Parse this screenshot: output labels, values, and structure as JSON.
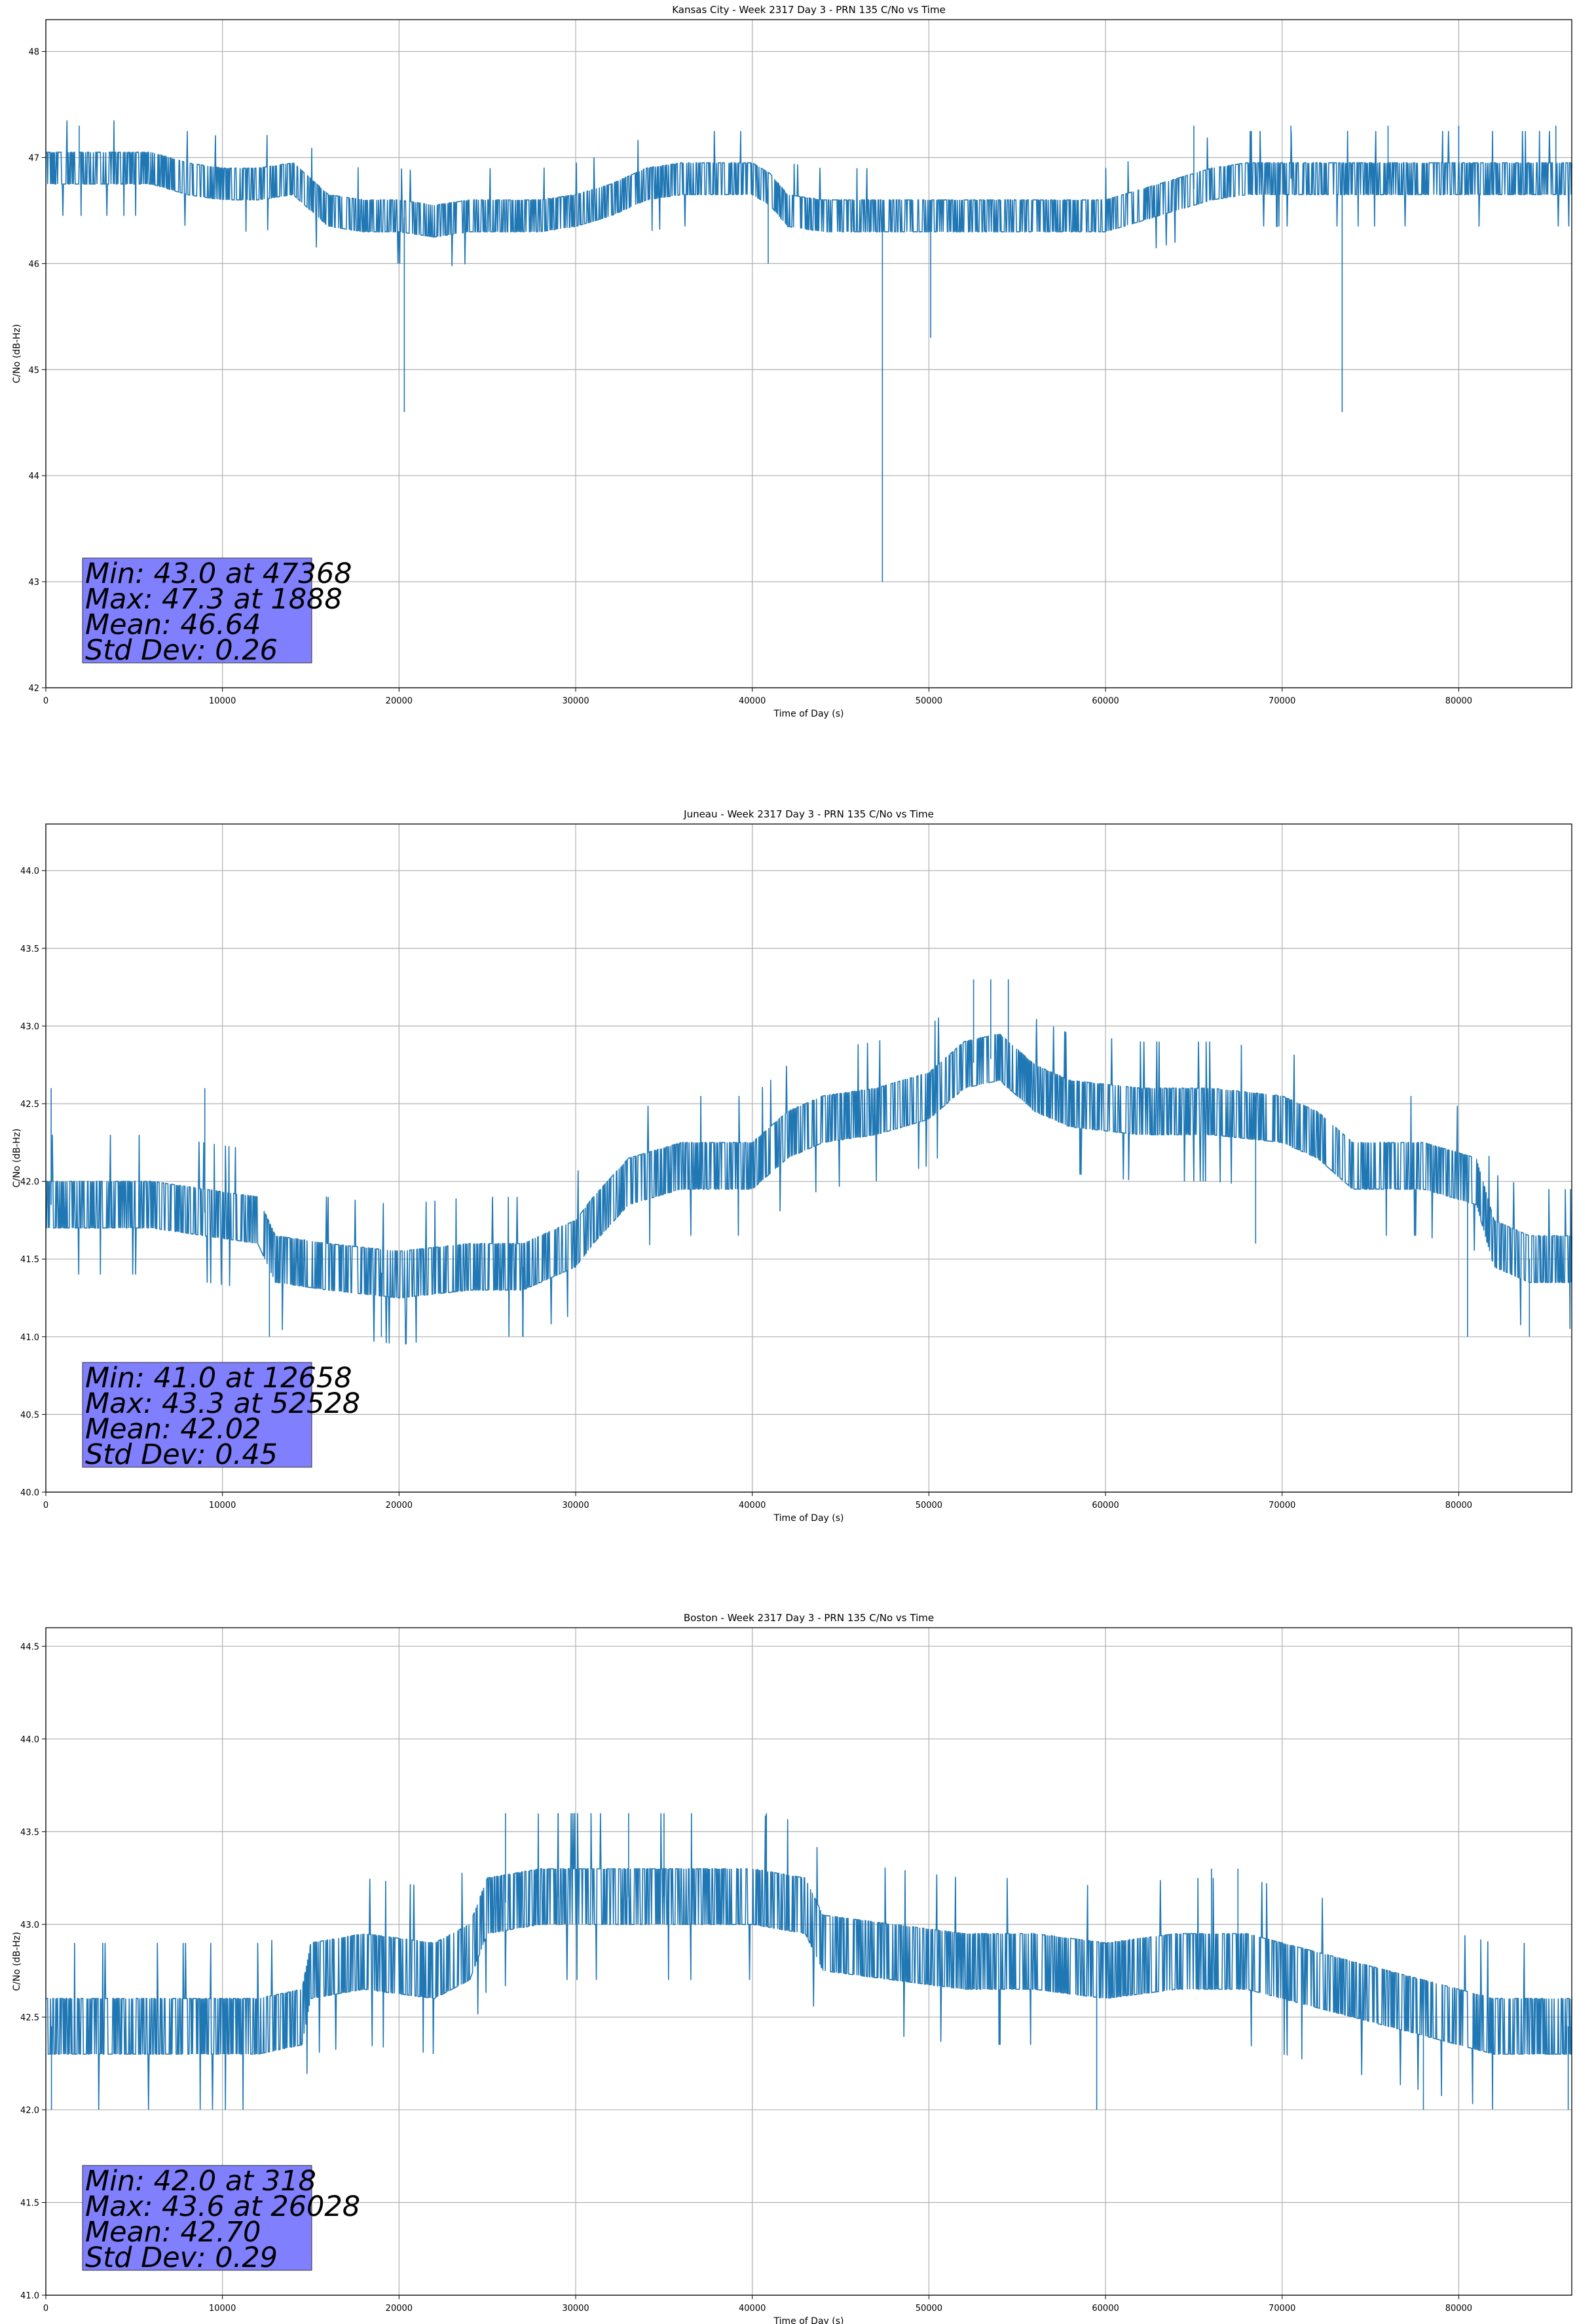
{
  "chart_data": [
    {
      "type": "line",
      "title": "Kansas City - Week 2317 Day 3 - PRN 135 C/No vs Time",
      "xlabel": "Time of Day (s)",
      "ylabel": "C/No (dB-Hz)",
      "xlim": [
        0,
        86400
      ],
      "ylim": [
        42,
        48.3
      ],
      "xticks": [
        0,
        10000,
        20000,
        30000,
        40000,
        50000,
        60000,
        70000,
        80000
      ],
      "yticks": [
        42,
        43,
        44,
        45,
        46,
        47,
        48
      ],
      "ytick_labels": [
        "42",
        "43",
        "44",
        "45",
        "46",
        "47",
        "48"
      ],
      "grid": true,
      "series_color": "#1f77b4",
      "series_profile": [
        [
          0,
          46.9
        ],
        [
          2000,
          46.9
        ],
        [
          4000,
          46.9
        ],
        [
          6000,
          46.9
        ],
        [
          8000,
          46.8
        ],
        [
          10000,
          46.75
        ],
        [
          12000,
          46.75
        ],
        [
          14000,
          46.8
        ],
        [
          16000,
          46.5
        ],
        [
          18000,
          46.45
        ],
        [
          20000,
          46.45
        ],
        [
          22000,
          46.4
        ],
        [
          24000,
          46.45
        ],
        [
          26000,
          46.45
        ],
        [
          28000,
          46.45
        ],
        [
          30000,
          46.5
        ],
        [
          32000,
          46.6
        ],
        [
          34000,
          46.75
        ],
        [
          36000,
          46.8
        ],
        [
          38000,
          46.8
        ],
        [
          40000,
          46.8
        ],
        [
          41000,
          46.7
        ],
        [
          42000,
          46.5
        ],
        [
          44000,
          46.45
        ],
        [
          46000,
          46.45
        ],
        [
          48000,
          46.45
        ],
        [
          50000,
          46.45
        ],
        [
          52000,
          46.45
        ],
        [
          54000,
          46.45
        ],
        [
          56000,
          46.45
        ],
        [
          58000,
          46.45
        ],
        [
          60000,
          46.45
        ],
        [
          62000,
          46.55
        ],
        [
          64000,
          46.65
        ],
        [
          66000,
          46.75
        ],
        [
          68000,
          46.8
        ],
        [
          70000,
          46.8
        ],
        [
          72000,
          46.8
        ],
        [
          74000,
          46.8
        ],
        [
          76000,
          46.8
        ],
        [
          78000,
          46.8
        ],
        [
          80000,
          46.8
        ],
        [
          82000,
          46.8
        ],
        [
          84000,
          46.8
        ],
        [
          86400,
          46.8
        ]
      ],
      "series_noise": 0.22,
      "series_step": 0.3,
      "series_spikes": [
        [
          1888,
          47.3
        ],
        [
          20300,
          44.6
        ],
        [
          47368,
          43.0
        ],
        [
          50100,
          45.3
        ],
        [
          73400,
          44.6
        ],
        [
          40900,
          46.0
        ],
        [
          65000,
          47.3
        ],
        [
          70500,
          47.3
        ],
        [
          76000,
          47.3
        ],
        [
          80000,
          47.3
        ],
        [
          85500,
          47.3
        ]
      ],
      "stats": [
        "Min: 43.0 at 47368",
        "Max: 47.3 at 1888",
        "Mean: 46.64",
        "Std Dev: 0.26"
      ],
      "stats_location": "bottom-left"
    },
    {
      "type": "line",
      "title": "Juneau - Week 2317 Day 3 - PRN 135 C/No vs Time",
      "xlabel": "Time of Day (s)",
      "ylabel": "C/No (dB-Hz)",
      "xlim": [
        0,
        86400
      ],
      "ylim": [
        40,
        44.3
      ],
      "xticks": [
        0,
        10000,
        20000,
        30000,
        40000,
        50000,
        60000,
        70000,
        80000
      ],
      "yticks": [
        40.0,
        40.5,
        41.0,
        41.5,
        42.0,
        42.5,
        43.0,
        43.5,
        44.0
      ],
      "ytick_labels": [
        "40.0",
        "40.5",
        "41.0",
        "41.5",
        "42.0",
        "42.5",
        "43.0",
        "43.5",
        "44.0"
      ],
      "grid": true,
      "series_color": "#1f77b4",
      "series_profile": [
        [
          0,
          41.85
        ],
        [
          3000,
          41.85
        ],
        [
          6000,
          41.85
        ],
        [
          9000,
          41.8
        ],
        [
          12000,
          41.75
        ],
        [
          13000,
          41.5
        ],
        [
          16000,
          41.45
        ],
        [
          20000,
          41.4
        ],
        [
          24000,
          41.45
        ],
        [
          27000,
          41.45
        ],
        [
          30000,
          41.6
        ],
        [
          31000,
          41.75
        ],
        [
          33000,
          42.0
        ],
        [
          36000,
          42.1
        ],
        [
          40000,
          42.1
        ],
        [
          42000,
          42.3
        ],
        [
          44000,
          42.4
        ],
        [
          47000,
          42.45
        ],
        [
          50000,
          42.55
        ],
        [
          52000,
          42.75
        ],
        [
          54000,
          42.8
        ],
        [
          56000,
          42.6
        ],
        [
          58000,
          42.5
        ],
        [
          62000,
          42.45
        ],
        [
          66000,
          42.45
        ],
        [
          70000,
          42.4
        ],
        [
          72000,
          42.3
        ],
        [
          74000,
          42.1
        ],
        [
          78000,
          42.1
        ],
        [
          81000,
          42.0
        ],
        [
          82000,
          41.6
        ],
        [
          84000,
          41.5
        ],
        [
          86400,
          41.5
        ]
      ],
      "series_noise": 0.3,
      "series_step": 0.3,
      "series_spikes": [
        [
          52528,
          43.3
        ],
        [
          53500,
          43.3
        ],
        [
          54500,
          43.3
        ],
        [
          9000,
          42.6
        ],
        [
          300,
          42.6
        ],
        [
          12658,
          41.0
        ],
        [
          19000,
          41.0
        ],
        [
          27000,
          41.0
        ],
        [
          80500,
          41.0
        ],
        [
          84000,
          41.0
        ],
        [
          68500,
          41.6
        ]
      ],
      "stats": [
        "Min: 41.0 at 12658",
        "Max: 43.3 at 52528",
        "Mean: 42.02",
        "Std Dev: 0.45"
      ],
      "stats_location": "bottom-left"
    },
    {
      "type": "line",
      "title": "Boston - Week 2317 Day 3 - PRN 135 C/No vs Time",
      "xlabel": "Time of Day (s)",
      "ylabel": "C/No (dB-Hz)",
      "xlim": [
        0,
        86400
      ],
      "ylim": [
        41,
        44.6
      ],
      "xticks": [
        0,
        10000,
        20000,
        30000,
        40000,
        50000,
        60000,
        70000,
        80000
      ],
      "yticks": [
        41.0,
        41.5,
        42.0,
        42.5,
        43.0,
        43.5,
        44.0,
        44.5
      ],
      "ytick_labels": [
        "41.0",
        "41.5",
        "42.0",
        "42.5",
        "43.0",
        "43.5",
        "44.0",
        "44.5"
      ],
      "grid": true,
      "series_color": "#1f77b4",
      "series_profile": [
        [
          0,
          42.45
        ],
        [
          4000,
          42.45
        ],
        [
          8000,
          42.45
        ],
        [
          12000,
          42.45
        ],
        [
          14500,
          42.5
        ],
        [
          15000,
          42.75
        ],
        [
          18000,
          42.8
        ],
        [
          22000,
          42.75
        ],
        [
          24000,
          42.85
        ],
        [
          25000,
          43.1
        ],
        [
          28000,
          43.15
        ],
        [
          32000,
          43.15
        ],
        [
          36000,
          43.15
        ],
        [
          40000,
          43.15
        ],
        [
          43000,
          43.1
        ],
        [
          44000,
          42.9
        ],
        [
          48000,
          42.85
        ],
        [
          52000,
          42.8
        ],
        [
          56000,
          42.8
        ],
        [
          60000,
          42.75
        ],
        [
          64000,
          42.8
        ],
        [
          68000,
          42.8
        ],
        [
          72000,
          42.7
        ],
        [
          76000,
          42.6
        ],
        [
          80000,
          42.5
        ],
        [
          82000,
          42.45
        ],
        [
          86400,
          42.45
        ]
      ],
      "series_noise": 0.25,
      "series_step": 0.3,
      "series_spikes": [
        [
          318,
          42.0
        ],
        [
          26028,
          43.6
        ],
        [
          29000,
          43.6
        ],
        [
          33000,
          43.6
        ],
        [
          35000,
          43.6
        ],
        [
          40800,
          43.6
        ],
        [
          59500,
          42.0
        ],
        [
          78000,
          42.0
        ],
        [
          86200,
          42.0
        ],
        [
          66000,
          43.3
        ],
        [
          67500,
          43.3
        ]
      ],
      "stats": [
        "Min: 42.0 at 318",
        "Max: 43.6 at 26028",
        "Mean: 42.70",
        "Std Dev: 0.29"
      ],
      "stats_location": "bottom-left"
    }
  ]
}
